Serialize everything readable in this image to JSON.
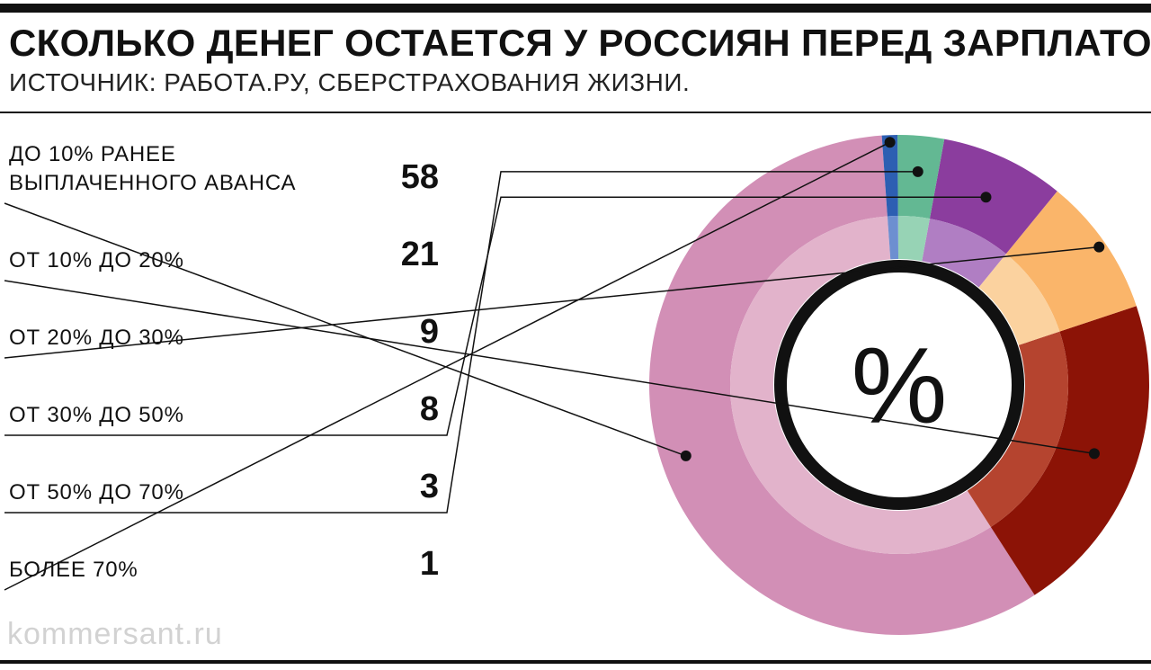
{
  "title": "СКОЛЬКО ДЕНЕГ ОСТАЕТСЯ У РОССИЯН ПЕРЕД ЗАРПЛАТОЙ",
  "subtitle": "ИСТОЧНИК: РАБОТА.РУ, СБЕРСТРАХОВАНИЯ ЖИЗНИ.",
  "center_symbol": "%",
  "watermark": "kommersant.ru",
  "chart_data": {
    "type": "pie",
    "title": "СКОЛЬКО ДЕНЕГ ОСТАЕТСЯ У РОССИЯН ПЕРЕД ЗАРПЛАТОЙ",
    "unit": "%",
    "categories": [
      "ДО 10% РАНЕЕ\nВЫПЛАЧЕННОГО АВАНСА",
      "ОТ 10% ДО 20%",
      "ОТ 20% ДО 30%",
      "ОТ 30% ДО 50%",
      "ОТ 50% ДО 70%",
      "БОЛЕЕ 70%"
    ],
    "values": [
      58,
      21,
      9,
      8,
      3,
      1
    ],
    "colors": [
      "#d28fb6",
      "#8c1306",
      "#fab56a",
      "#8b3d9e",
      "#63b893",
      "#2d5fb2"
    ],
    "inner_colors": [
      "#e2b3cb",
      "#b5442f",
      "#fbd29f",
      "#b07ec3",
      "#97d3b5",
      "#6d8fd0"
    ],
    "direction": "counterclockwise",
    "legend": "left"
  }
}
